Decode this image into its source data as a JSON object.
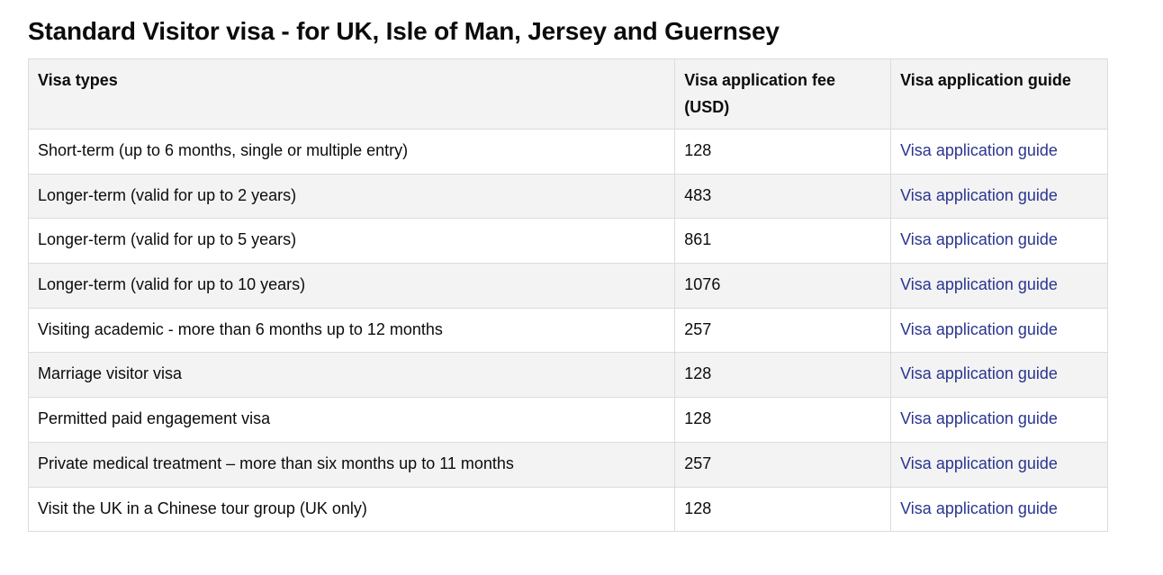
{
  "page": {
    "title": "Standard Visitor visa - for UK, Isle of Man, Jersey and Guernsey"
  },
  "table": {
    "headers": {
      "type": "Visa types",
      "fee": "Visa application fee (USD)",
      "guide": "Visa application guide"
    },
    "rows": [
      {
        "type": "Short-term (up to 6 months, single or multiple entry)",
        "fee": "128",
        "guide": "Visa application guide"
      },
      {
        "type": "Longer-term (valid for up to 2 years)",
        "fee": "483",
        "guide": "Visa application guide"
      },
      {
        "type": "Longer-term (valid for up to 5 years)",
        "fee": "861",
        "guide": "Visa application guide"
      },
      {
        "type": "Longer-term (valid for up to 10 years)",
        "fee": "1076",
        "guide": "Visa application guide"
      },
      {
        "type": "Visiting academic - more than 6 months up to 12 months",
        "fee": "257",
        "guide": "Visa application guide"
      },
      {
        "type": "Marriage visitor visa",
        "fee": "128",
        "guide": "Visa application guide"
      },
      {
        "type": "Permitted paid engagement visa",
        "fee": "128",
        "guide": "Visa application guide"
      },
      {
        "type": "Private medical treatment – more than six months up to 11 months",
        "fee": "257",
        "guide": "Visa application guide"
      },
      {
        "type": "Visit the UK in a Chinese tour group (UK only)",
        "fee": "128",
        "guide": "Visa application guide"
      }
    ]
  },
  "colors": {
    "link": "#2a3590",
    "header_bg": "#f3f3f3",
    "row_alt_bg": "#f3f3f3",
    "border": "#dcdcdc"
  }
}
